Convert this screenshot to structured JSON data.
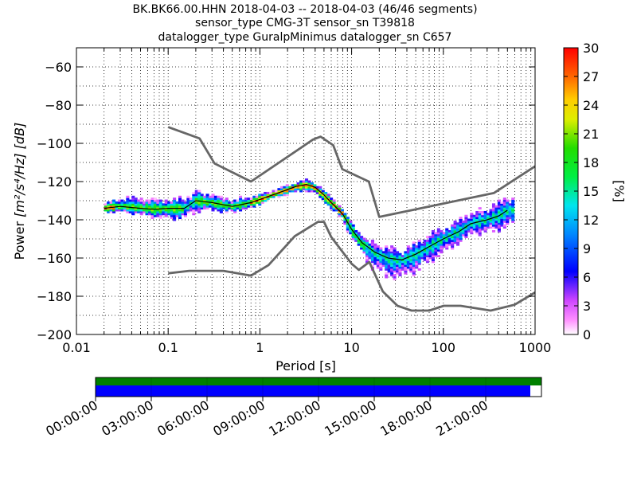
{
  "chart_data": {
    "type": "heatmap",
    "title_lines": [
      "BK.BK66.00.HHN   2018-04-03 -- 2018-04-03  (46/46 segments)",
      "sensor_type CMG-3T sensor_sn T39818",
      "datalogger_type GuralpMinimus datalogger_sn C657"
    ],
    "xlabel": "Period [s]",
    "ylabel_prefix": "Power ",
    "ylabel_units": "[m²/s⁴/Hz] [dB]",
    "xscale": "log",
    "xlim": [
      0.01,
      1000
    ],
    "ylim": [
      -200,
      -50
    ],
    "x_ticks": [
      {
        "value": 0.01,
        "label": "0.01"
      },
      {
        "value": 0.1,
        "label": "0.1"
      },
      {
        "value": 1,
        "label": "1"
      },
      {
        "value": 10,
        "label": "10"
      },
      {
        "value": 100,
        "label": "100"
      },
      {
        "value": 1000,
        "label": "1000"
      }
    ],
    "y_ticks": [
      {
        "value": -60,
        "label": "−60"
      },
      {
        "value": -80,
        "label": "−80"
      },
      {
        "value": -100,
        "label": "−100"
      },
      {
        "value": -120,
        "label": "−120"
      },
      {
        "value": -140,
        "label": "−140"
      },
      {
        "value": -160,
        "label": "−160"
      },
      {
        "value": -180,
        "label": "−180"
      },
      {
        "value": -200,
        "label": "−200"
      }
    ],
    "colorbar": {
      "label": "[%]",
      "range": [
        0,
        30
      ],
      "ticks": [
        "0",
        "3",
        "6",
        "9",
        "12",
        "15",
        "18",
        "21",
        "24",
        "27",
        "30"
      ],
      "colormap": "pqlx"
    },
    "grid": "dotted",
    "nhnm_curve": [
      [
        0.1,
        -91.5
      ],
      [
        0.22,
        -97.4
      ],
      [
        0.32,
        -110.5
      ],
      [
        0.8,
        -120
      ],
      [
        3.8,
        -98
      ],
      [
        4.6,
        -96.5
      ],
      [
        6.3,
        -101
      ],
      [
        7.9,
        -113.5
      ],
      [
        15.4,
        -120
      ],
      [
        20,
        -138.5
      ],
      [
        354.8,
        -126
      ],
      [
        1000,
        -112
      ]
    ],
    "nlnm_curve": [
      [
        0.1,
        -168
      ],
      [
        0.17,
        -166.7
      ],
      [
        0.4,
        -166.7
      ],
      [
        0.8,
        -169.2
      ],
      [
        1.24,
        -163.7
      ],
      [
        2.4,
        -148.6
      ],
      [
        4.3,
        -141.1
      ],
      [
        5,
        -141.1
      ],
      [
        6,
        -149
      ],
      [
        10,
        -163
      ],
      [
        12,
        -166.2
      ],
      [
        15.6,
        -162.1
      ],
      [
        21.9,
        -177.5
      ],
      [
        31.6,
        -185
      ],
      [
        45,
        -187.5
      ],
      [
        70,
        -187.5
      ],
      [
        101,
        -185
      ],
      [
        154,
        -185
      ],
      [
        328,
        -187.5
      ],
      [
        600,
        -184.4
      ],
      [
        1000,
        -178
      ]
    ],
    "mode_curve": [
      [
        0.02,
        -134
      ],
      [
        0.03,
        -133
      ],
      [
        0.05,
        -134
      ],
      [
        0.07,
        -134.5
      ],
      [
        0.1,
        -134
      ],
      [
        0.15,
        -134
      ],
      [
        0.2,
        -130
      ],
      [
        0.3,
        -131
      ],
      [
        0.5,
        -133
      ],
      [
        0.8,
        -131
      ],
      [
        1.2,
        -128
      ],
      [
        1.8,
        -125
      ],
      [
        2.5,
        -122.5
      ],
      [
        3.2,
        -121.5
      ],
      [
        4,
        -123
      ],
      [
        5,
        -127
      ],
      [
        6,
        -131
      ],
      [
        8,
        -137
      ],
      [
        10,
        -145
      ],
      [
        13,
        -152
      ],
      [
        18,
        -157
      ],
      [
        25,
        -160
      ],
      [
        35,
        -161
      ],
      [
        50,
        -158
      ],
      [
        70,
        -154
      ],
      [
        100,
        -150
      ],
      [
        150,
        -146
      ],
      [
        200,
        -142
      ],
      [
        300,
        -140
      ],
      [
        400,
        -138
      ],
      [
        500,
        -135
      ]
    ],
    "density_spread": [
      [
        0.02,
        2,
        2
      ],
      [
        0.03,
        4,
        3
      ],
      [
        0.05,
        5,
        3
      ],
      [
        0.07,
        5,
        4
      ],
      [
        0.1,
        4,
        5
      ],
      [
        0.15,
        5,
        5
      ],
      [
        0.2,
        5,
        5
      ],
      [
        0.3,
        4,
        4
      ],
      [
        0.5,
        3,
        3
      ],
      [
        0.8,
        3,
        3
      ],
      [
        1.2,
        2,
        2
      ],
      [
        1.8,
        2,
        2
      ],
      [
        2.5,
        2,
        3
      ],
      [
        3.2,
        2,
        3
      ],
      [
        4,
        2,
        3
      ],
      [
        5,
        2,
        3
      ],
      [
        6,
        2,
        3
      ],
      [
        8,
        3,
        3
      ],
      [
        10,
        3,
        4
      ],
      [
        13,
        3,
        6
      ],
      [
        18,
        4,
        8
      ],
      [
        25,
        5,
        9
      ],
      [
        35,
        5,
        8
      ],
      [
        50,
        6,
        8
      ],
      [
        70,
        6,
        8
      ],
      [
        100,
        6,
        6
      ],
      [
        150,
        6,
        6
      ],
      [
        200,
        5,
        5
      ],
      [
        300,
        6,
        6
      ],
      [
        400,
        7,
        7
      ],
      [
        600,
        7,
        8
      ]
    ],
    "coverage_ticks": [
      "00:00:00",
      "03:00:00",
      "06:00:00",
      "09:00:00",
      "12:00:00",
      "15:00:00",
      "18:00:00",
      "21:00:00"
    ],
    "coverage": {
      "top_color": "#008000",
      "bottom_color": "#0000ff",
      "bottom_fraction": 0.975
    },
    "colors": {
      "model_curve": "#666666",
      "mode_curve": "#000000"
    }
  }
}
